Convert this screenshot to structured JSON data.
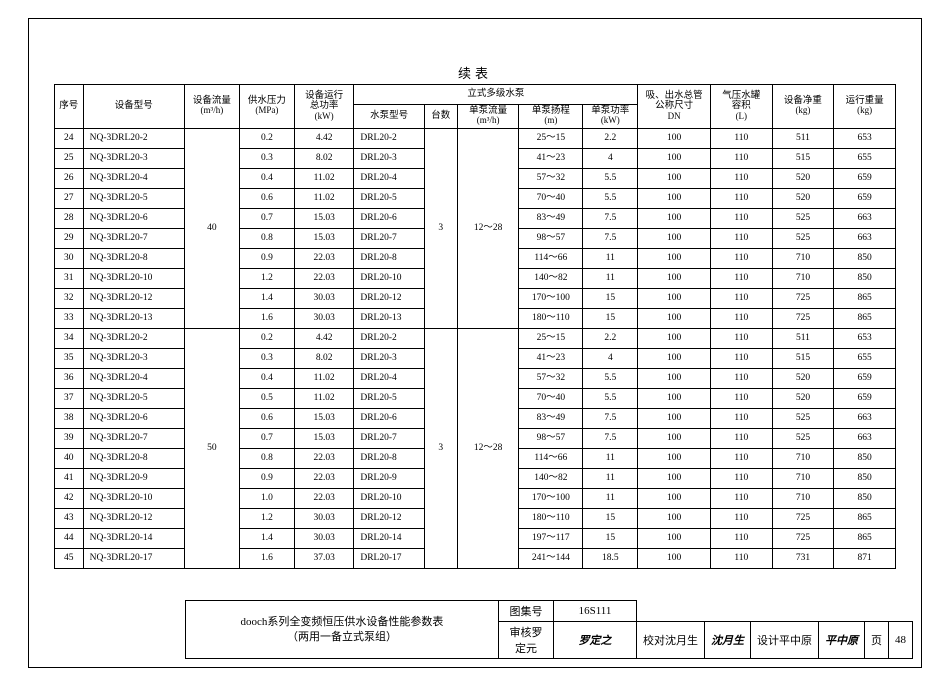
{
  "caption": "续表",
  "headers": {
    "seq": "序号",
    "model": "设备型号",
    "flow": "设备流量",
    "flow_unit": "(m³/h)",
    "pressure": "供水压力",
    "pressure_unit": "(MPa)",
    "totalpower": "设备运行",
    "totalpower2": "总功率",
    "totalpower_unit": "(kW)",
    "pump_group": "立式多级水泵",
    "pumpmodel": "水泵型号",
    "count": "台数",
    "perflow": "单泵流量",
    "perflow_unit": "(m³/h)",
    "head": "单泵扬程",
    "head_unit": "(m)",
    "perpower": "单泵功率",
    "perpower_unit": "(kW)",
    "pipe": "吸、出水总管",
    "pipe2": "公称尺寸",
    "pipe_unit": "DN",
    "tank": "气压水罐",
    "tank2": "容积",
    "tank_unit": "(L)",
    "netwt": "设备净重",
    "netwt_unit": "(kg)",
    "runwt": "运行重量",
    "runwt_unit": "(kg)"
  },
  "groups": [
    {
      "flow": "40",
      "count": "3",
      "perflow": "12～28",
      "rows": [
        {
          "seq": "24",
          "model": "NQ-3DRL20-2",
          "pressure": "0.2",
          "totalpower": "4.42",
          "pumpmodel": "DRL20-2",
          "head": "25～15",
          "perpower": "2.2",
          "pipe": "100",
          "tank": "110",
          "netwt": "511",
          "runwt": "653"
        },
        {
          "seq": "25",
          "model": "NQ-3DRL20-3",
          "pressure": "0.3",
          "totalpower": "8.02",
          "pumpmodel": "DRL20-3",
          "head": "41～23",
          "perpower": "4",
          "pipe": "100",
          "tank": "110",
          "netwt": "515",
          "runwt": "655"
        },
        {
          "seq": "26",
          "model": "NQ-3DRL20-4",
          "pressure": "0.4",
          "totalpower": "11.02",
          "pumpmodel": "DRL20-4",
          "head": "57～32",
          "perpower": "5.5",
          "pipe": "100",
          "tank": "110",
          "netwt": "520",
          "runwt": "659"
        },
        {
          "seq": "27",
          "model": "NQ-3DRL20-5",
          "pressure": "0.6",
          "totalpower": "11.02",
          "pumpmodel": "DRL20-5",
          "head": "70～40",
          "perpower": "5.5",
          "pipe": "100",
          "tank": "110",
          "netwt": "520",
          "runwt": "659"
        },
        {
          "seq": "28",
          "model": "NQ-3DRL20-6",
          "pressure": "0.7",
          "totalpower": "15.03",
          "pumpmodel": "DRL20-6",
          "head": "83～49",
          "perpower": "7.5",
          "pipe": "100",
          "tank": "110",
          "netwt": "525",
          "runwt": "663"
        },
        {
          "seq": "29",
          "model": "NQ-3DRL20-7",
          "pressure": "0.8",
          "totalpower": "15.03",
          "pumpmodel": "DRL20-7",
          "head": "98～57",
          "perpower": "7.5",
          "pipe": "100",
          "tank": "110",
          "netwt": "525",
          "runwt": "663"
        },
        {
          "seq": "30",
          "model": "NQ-3DRL20-8",
          "pressure": "0.9",
          "totalpower": "22.03",
          "pumpmodel": "DRL20-8",
          "head": "114～66",
          "perpower": "11",
          "pipe": "100",
          "tank": "110",
          "netwt": "710",
          "runwt": "850"
        },
        {
          "seq": "31",
          "model": "NQ-3DRL20-10",
          "pressure": "1.2",
          "totalpower": "22.03",
          "pumpmodel": "DRL20-10",
          "head": "140～82",
          "perpower": "11",
          "pipe": "100",
          "tank": "110",
          "netwt": "710",
          "runwt": "850"
        },
        {
          "seq": "32",
          "model": "NQ-3DRL20-12",
          "pressure": "1.4",
          "totalpower": "30.03",
          "pumpmodel": "DRL20-12",
          "head": "170～100",
          "perpower": "15",
          "pipe": "100",
          "tank": "110",
          "netwt": "725",
          "runwt": "865"
        },
        {
          "seq": "33",
          "model": "NQ-3DRL20-13",
          "pressure": "1.6",
          "totalpower": "30.03",
          "pumpmodel": "DRL20-13",
          "head": "180～110",
          "perpower": "15",
          "pipe": "100",
          "tank": "110",
          "netwt": "725",
          "runwt": "865"
        }
      ]
    },
    {
      "flow": "50",
      "count": "3",
      "perflow": "12～28",
      "rows": [
        {
          "seq": "34",
          "model": "NQ-3DRL20-2",
          "pressure": "0.2",
          "totalpower": "4.42",
          "pumpmodel": "DRL20-2",
          "head": "25～15",
          "perpower": "2.2",
          "pipe": "100",
          "tank": "110",
          "netwt": "511",
          "runwt": "653"
        },
        {
          "seq": "35",
          "model": "NQ-3DRL20-3",
          "pressure": "0.3",
          "totalpower": "8.02",
          "pumpmodel": "DRL20-3",
          "head": "41～23",
          "perpower": "4",
          "pipe": "100",
          "tank": "110",
          "netwt": "515",
          "runwt": "655"
        },
        {
          "seq": "36",
          "model": "NQ-3DRL20-4",
          "pressure": "0.4",
          "totalpower": "11.02",
          "pumpmodel": "DRL20-4",
          "head": "57～32",
          "perpower": "5.5",
          "pipe": "100",
          "tank": "110",
          "netwt": "520",
          "runwt": "659"
        },
        {
          "seq": "37",
          "model": "NQ-3DRL20-5",
          "pressure": "0.5",
          "totalpower": "11.02",
          "pumpmodel": "DRL20-5",
          "head": "70～40",
          "perpower": "5.5",
          "pipe": "100",
          "tank": "110",
          "netwt": "520",
          "runwt": "659"
        },
        {
          "seq": "38",
          "model": "NQ-3DRL20-6",
          "pressure": "0.6",
          "totalpower": "15.03",
          "pumpmodel": "DRL20-6",
          "head": "83～49",
          "perpower": "7.5",
          "pipe": "100",
          "tank": "110",
          "netwt": "525",
          "runwt": "663"
        },
        {
          "seq": "39",
          "model": "NQ-3DRL20-7",
          "pressure": "0.7",
          "totalpower": "15.03",
          "pumpmodel": "DRL20-7",
          "head": "98～57",
          "perpower": "7.5",
          "pipe": "100",
          "tank": "110",
          "netwt": "525",
          "runwt": "663"
        },
        {
          "seq": "40",
          "model": "NQ-3DRL20-8",
          "pressure": "0.8",
          "totalpower": "22.03",
          "pumpmodel": "DRL20-8",
          "head": "114～66",
          "perpower": "11",
          "pipe": "100",
          "tank": "110",
          "netwt": "710",
          "runwt": "850"
        },
        {
          "seq": "41",
          "model": "NQ-3DRL20-9",
          "pressure": "0.9",
          "totalpower": "22.03",
          "pumpmodel": "DRL20-9",
          "head": "140～82",
          "perpower": "11",
          "pipe": "100",
          "tank": "110",
          "netwt": "710",
          "runwt": "850"
        },
        {
          "seq": "42",
          "model": "NQ-3DRL20-10",
          "pressure": "1.0",
          "totalpower": "22.03",
          "pumpmodel": "DRL20-10",
          "head": "170～100",
          "perpower": "11",
          "pipe": "100",
          "tank": "110",
          "netwt": "710",
          "runwt": "850"
        },
        {
          "seq": "43",
          "model": "NQ-3DRL20-12",
          "pressure": "1.2",
          "totalpower": "30.03",
          "pumpmodel": "DRL20-12",
          "head": "180～110",
          "perpower": "15",
          "pipe": "100",
          "tank": "110",
          "netwt": "725",
          "runwt": "865"
        },
        {
          "seq": "44",
          "model": "NQ-3DRL20-14",
          "pressure": "1.4",
          "totalpower": "30.03",
          "pumpmodel": "DRL20-14",
          "head": "197～117",
          "perpower": "15",
          "pipe": "100",
          "tank": "110",
          "netwt": "725",
          "runwt": "865"
        },
        {
          "seq": "45",
          "model": "NQ-3DRL20-17",
          "pressure": "1.6",
          "totalpower": "37.03",
          "pumpmodel": "DRL20-17",
          "head": "241～144",
          "perpower": "18.5",
          "pipe": "100",
          "tank": "110",
          "netwt": "731",
          "runwt": "871"
        }
      ]
    }
  ],
  "footer": {
    "title1": "dooch系列全变频恒压供水设备性能参数表",
    "title2": "（两用一备立式泵组）",
    "atlas_lbl": "图集号",
    "atlas_val": "16S111",
    "review_lbl": "审核",
    "review_name": "罗定元",
    "review_sig": "罗定之",
    "check_lbl": "校对",
    "check_name": "沈月生",
    "check_sig": "沈月生",
    "design_lbl": "设计",
    "design_name": "平中原",
    "design_sig": "平中原",
    "page_lbl": "页",
    "page_val": "48"
  }
}
